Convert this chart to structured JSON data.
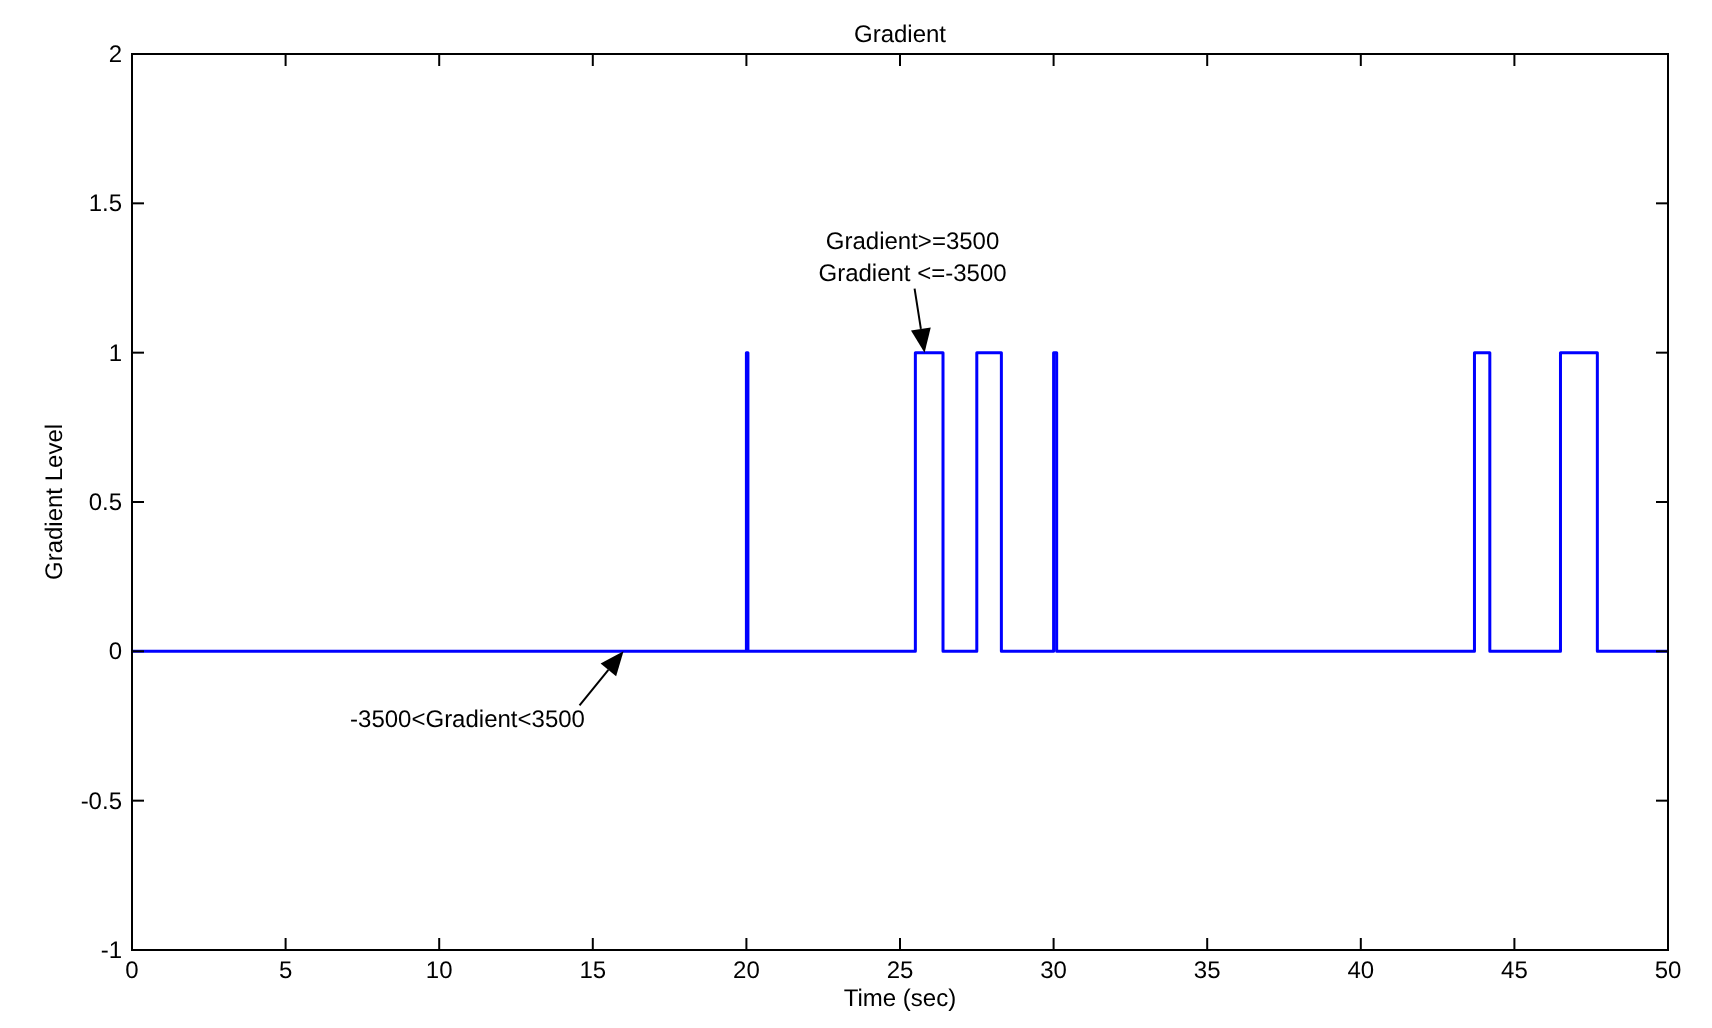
{
  "chart_data": {
    "type": "step",
    "title": "Gradient",
    "xlabel": "Time (sec)",
    "ylabel": "Gradient Level",
    "x": [
      0,
      20,
      20.05,
      25.5,
      26.4,
      27.5,
      28.3,
      30,
      30.1,
      43.7,
      44.2,
      46.5,
      47.7,
      50
    ],
    "series": [
      {
        "color": "#0000ff",
        "values": [
          0,
          1,
          0,
          1,
          0,
          1,
          0,
          1,
          0,
          1,
          0,
          1,
          0,
          0
        ]
      }
    ],
    "xlim": [
      0,
      50
    ],
    "xticks": [
      0,
      5,
      10,
      15,
      20,
      25,
      30,
      35,
      40,
      45,
      50
    ],
    "ylim": [
      -1,
      2
    ],
    "yticks": [
      -1,
      -0.5,
      0,
      0.5,
      1,
      1.5,
      2
    ],
    "grid": false,
    "annotations": [
      {
        "text": "Gradient>=3500\nGradient <=-3500",
        "x": 25.8,
        "y": 1
      },
      {
        "text": "-3500<Gradient<3500",
        "x": 16,
        "y": 0
      }
    ]
  }
}
